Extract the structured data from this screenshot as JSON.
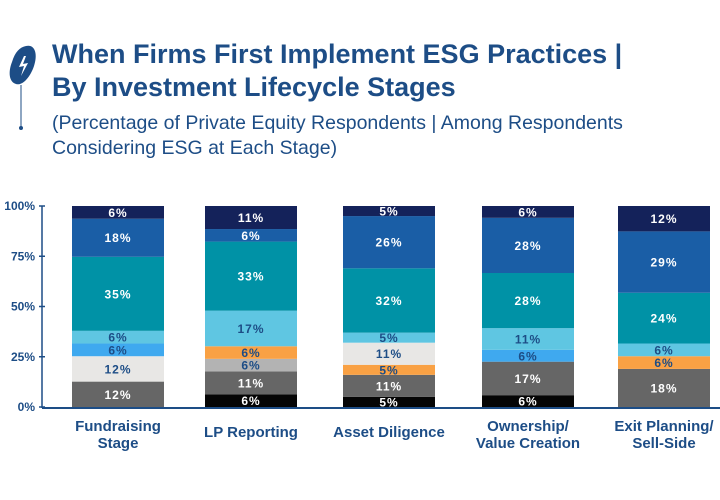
{
  "title": "When Firms First Implement ESG Practices |\nBy Investment Lifecycle Stages",
  "subtitle": "(Percentage of Private Equity Respondents | Among Respondents\nConsidering ESG at Each Stage)",
  "logo": "balloon-lightning-logo",
  "colors": {
    "axis": "#1d4d86",
    "black": "#050505",
    "gray": "#666666",
    "lightgray": "#b3b3b3",
    "orange": "#f9a144",
    "offwhite": "#e8e7e5",
    "brightblue": "#3fa9ef",
    "cyan": "#5fc6e2",
    "teal": "#0092a6",
    "blue": "#1a5ea6",
    "navy": "#14225a"
  },
  "chart_data": {
    "type": "bar",
    "stacked": true,
    "categories": [
      "Fundraising\nStage",
      "LP Reporting",
      "Asset Diligence",
      "Ownership/\nValue Creation",
      "Exit Planning/\nSell-Side"
    ],
    "yticks": [
      "0%",
      "25%",
      "50%",
      "75%",
      "100%"
    ],
    "ylim": [
      0,
      100
    ],
    "grid": false,
    "legend": "none",
    "series": [
      {
        "color_key": "black",
        "values": [
          0,
          6,
          5,
          6,
          0
        ]
      },
      {
        "color_key": "gray",
        "values": [
          12,
          11,
          11,
          17,
          18
        ]
      },
      {
        "color_key": "lightgray",
        "values": [
          0,
          6,
          0,
          0,
          0
        ]
      },
      {
        "color_key": "orange",
        "values": [
          0,
          6,
          5,
          0,
          6
        ]
      },
      {
        "color_key": "offwhite",
        "values": [
          12,
          0,
          11,
          0,
          0
        ]
      },
      {
        "color_key": "brightblue",
        "values": [
          6,
          0,
          0,
          6,
          0
        ]
      },
      {
        "color_key": "cyan",
        "values": [
          6,
          17,
          5,
          11,
          6
        ]
      },
      {
        "color_key": "teal",
        "values": [
          35,
          33,
          32,
          28,
          24
        ]
      },
      {
        "color_key": "blue",
        "values": [
          18,
          6,
          26,
          28,
          29
        ]
      },
      {
        "color_key": "navy",
        "values": [
          6,
          11,
          5,
          6,
          12
        ]
      }
    ]
  }
}
